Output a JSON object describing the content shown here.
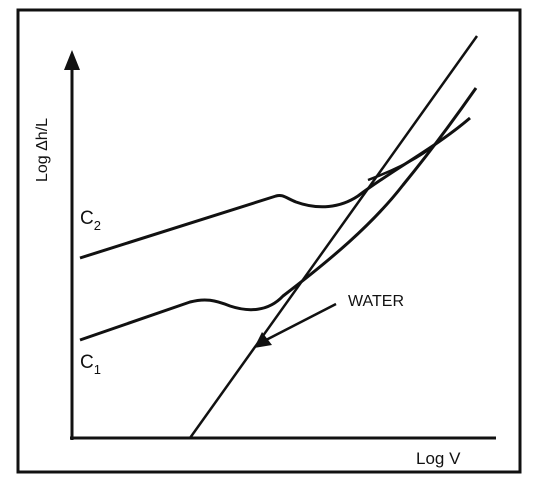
{
  "chart_data": {
    "type": "line",
    "xlabel": "Log V",
    "ylabel": "Log Δh/L",
    "grid": false,
    "tick_labels": false,
    "series": [
      {
        "name": "WATER"
      },
      {
        "name": "C",
        "subscript": "2"
      },
      {
        "name": "C",
        "subscript": "1"
      }
    ]
  }
}
